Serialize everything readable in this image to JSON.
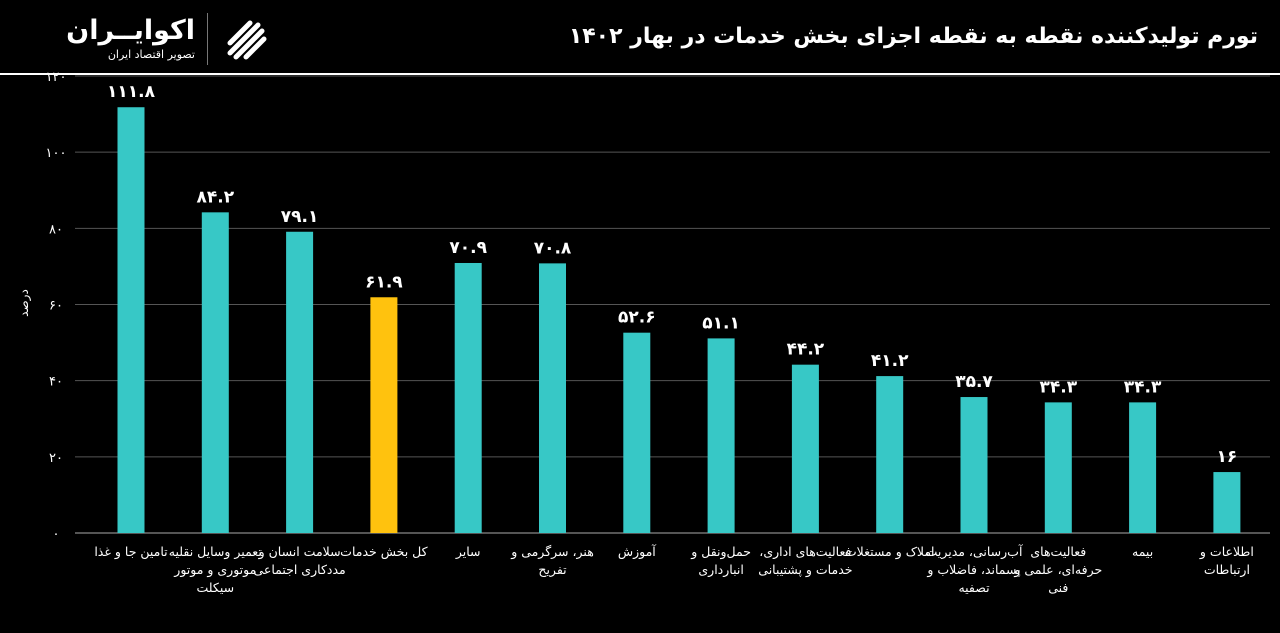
{
  "header": {
    "title": "تورم تولیدکننده نقطه به نقطه اجزای بخش خدمات در بهار ۱۴۰۲",
    "logo_name": "اکوایــران",
    "logo_sub": "تصویر اقتصاد ایران"
  },
  "colors": {
    "bar": "#37C8C6",
    "highlight": "#FFC20E",
    "grid": "#555555",
    "background": "#000000"
  },
  "chart_data": {
    "type": "bar",
    "title": "تورم تولیدکننده نقطه به نقطه اجزای بخش خدمات در بهار ۱۴۰۲",
    "ylabel": "درصد",
    "ylim": [
      0,
      120
    ],
    "yticks": [
      "۰",
      "۲۰",
      "۴۰",
      "۶۰",
      "۸۰",
      "۱۰۰",
      "۱۲۰"
    ],
    "categories": [
      "تامین جا و غذا",
      "تعمیر وسایل نقلیه موتوری و موتور سیکلت",
      "سلامت انسان و مددکاری اجتماعی",
      "کل بخش خدمات",
      "سایر",
      "هنر، سرگرمی و تفریح",
      "آموزش",
      "حمل‌ونقل و انبارداری",
      "فعالیت‌های اداری، خدمات و پشتیبانی",
      "املاک و مستغلات",
      "آب‌رسانی، مدیریت پسماند، فاضلاب و تصفیه",
      "فعالیت‌های حرفه‌ای، علمی و فنی",
      "بیمه",
      "اطلاعات و ارتباطات"
    ],
    "values": [
      111.8,
      84.2,
      79.1,
      61.9,
      70.9,
      70.8,
      52.6,
      51.1,
      44.2,
      41.2,
      35.7,
      34.3,
      34.3,
      16
    ],
    "value_labels": [
      "۱۱۱.۸",
      "۸۴.۲",
      "۷۹.۱",
      "۶۱.۹",
      "۷۰.۹",
      "۷۰.۸",
      "۵۲.۶",
      "۵۱.۱",
      "۴۴.۲",
      "۴۱.۲",
      "۳۵.۷",
      "۳۴.۳",
      "۳۴.۳",
      "۱۶"
    ],
    "highlight_index": 3,
    "grid": true
  }
}
